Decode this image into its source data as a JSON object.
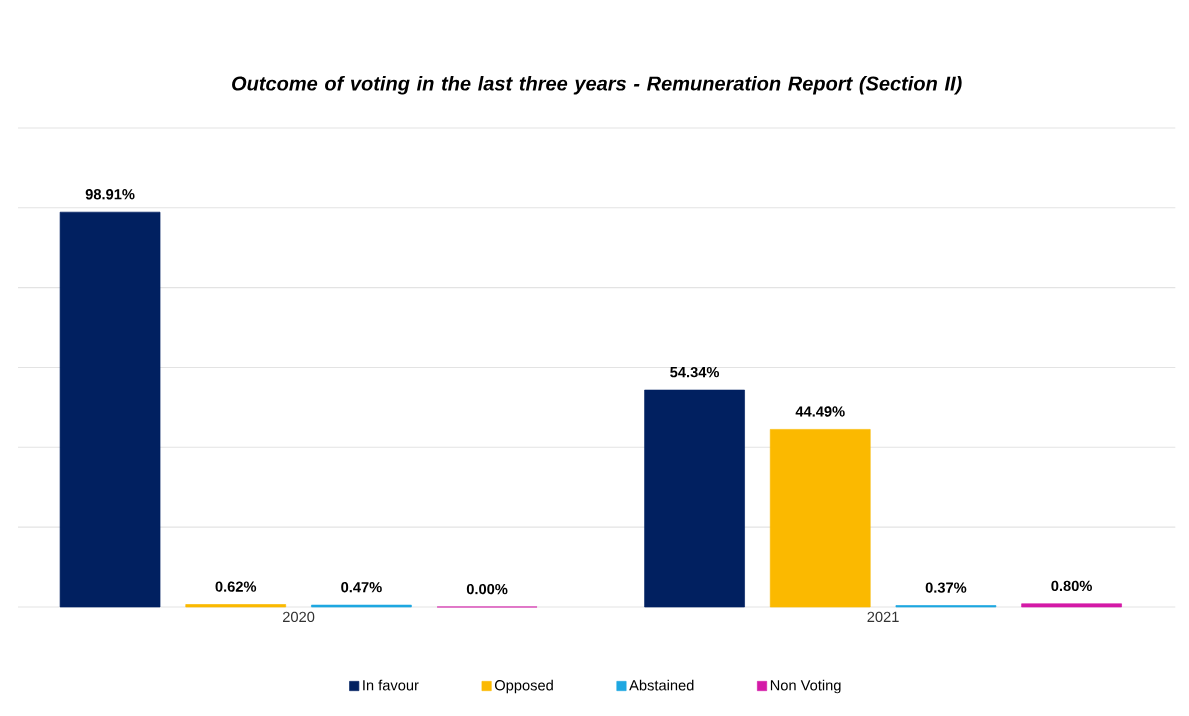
{
  "chart_data": {
    "type": "bar",
    "title": "Outcome of voting in the last three years - Remuneration Report (Section II)",
    "categories": [
      "2020",
      "2021"
    ],
    "series": [
      {
        "name": "In favour",
        "color": "#012060",
        "values": [
          98.91,
          54.34
        ],
        "value_labels": [
          "98.91%",
          "54.34%"
        ]
      },
      {
        "name": "Opposed",
        "color": "#fbb900",
        "values": [
          0.62,
          44.49
        ],
        "value_labels": [
          "0.62%",
          "44.49%"
        ]
      },
      {
        "name": "Abstained",
        "color": "#1ea7e1",
        "values": [
          0.47,
          0.37
        ],
        "value_labels": [
          "0.47%",
          "0.37%"
        ]
      },
      {
        "name": "Non Voting",
        "color": "#d41aa7",
        "values": [
          0.0,
          0.8
        ],
        "value_labels": [
          "0.00%",
          "0.80%"
        ]
      }
    ],
    "ylim": [
      0,
      120
    ],
    "yticks": [
      {
        "value": 0,
        "label": null
      },
      {
        "value": 20,
        "label": null
      },
      {
        "value": 40,
        "label": null
      },
      {
        "value": 60,
        "label": null
      },
      {
        "value": 80,
        "label": null
      },
      {
        "value": 100,
        "label": null
      },
      {
        "value": 120,
        "label": null
      }
    ],
    "grid": "y",
    "legend": "bottom",
    "tick_labels": "x"
  }
}
